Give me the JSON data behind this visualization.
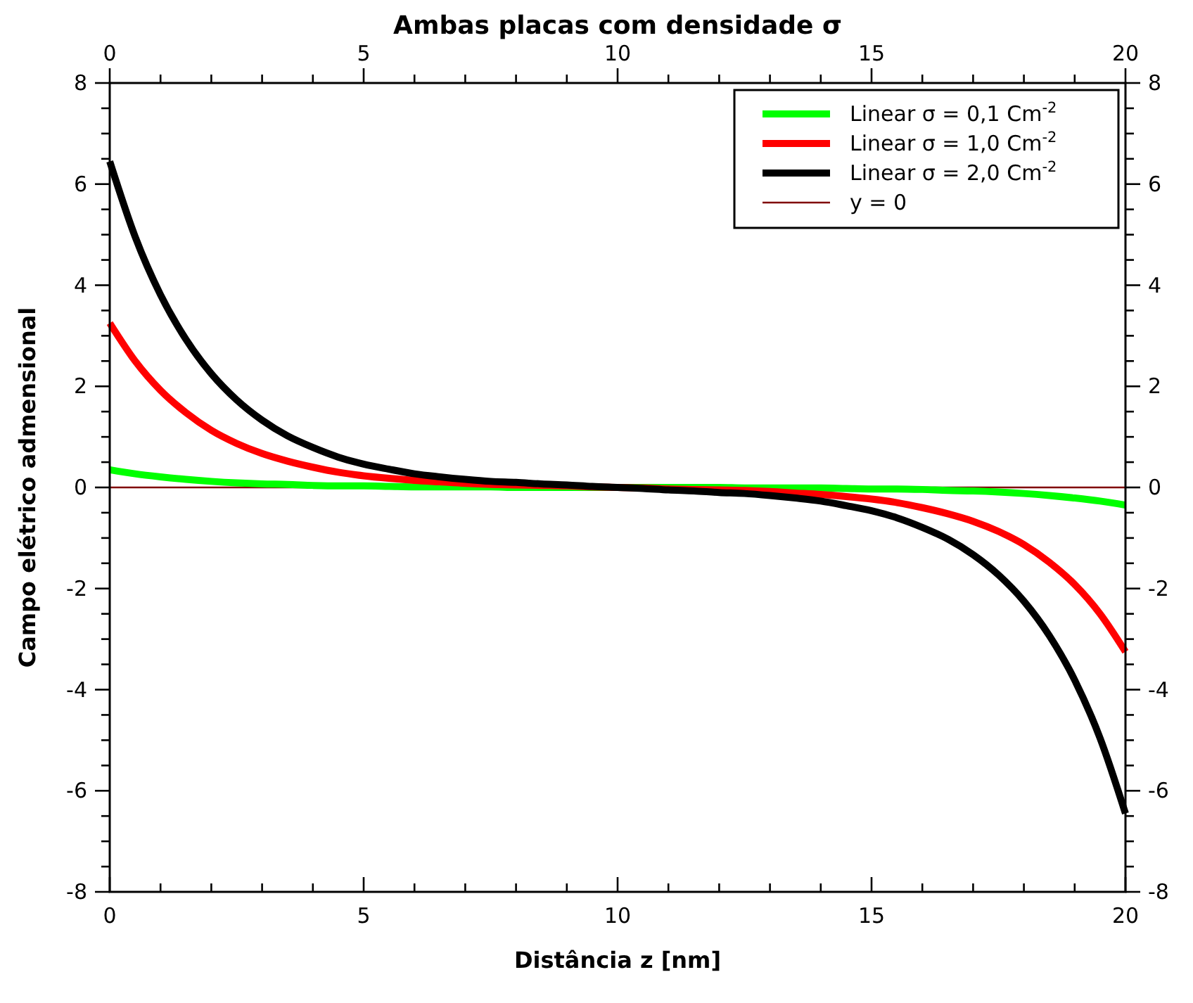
{
  "chart_data": {
    "type": "line",
    "title": "Ambas placas com densidade σ",
    "xlabel": "Distância z [nm]",
    "ylabel": "Campo elétrico admensional",
    "x": [
      0,
      0.5,
      1,
      1.5,
      2,
      2.5,
      3,
      3.5,
      4,
      4.5,
      5,
      5.5,
      6,
      6.5,
      7,
      7.5,
      8,
      8.5,
      9,
      9.5,
      10,
      10.5,
      11,
      11.5,
      12,
      12.5,
      13,
      13.5,
      14,
      14.5,
      15,
      15.5,
      16,
      16.5,
      17,
      17.5,
      18,
      18.5,
      19,
      19.5,
      20
    ],
    "series": [
      {
        "name": "Linear σ = 0,1 Cm$^{-2}$",
        "color": "#00ff00",
        "values": [
          0.35,
          0.27,
          0.21,
          0.16,
          0.12,
          0.09,
          0.07,
          0.06,
          0.04,
          0.03,
          0.03,
          0.02,
          0.01,
          0.01,
          0.01,
          0.01,
          0,
          0,
          0,
          0,
          0,
          0,
          0,
          0,
          0,
          -0.01,
          -0.01,
          -0.01,
          -0.01,
          -0.02,
          -0.03,
          -0.03,
          -0.04,
          -0.06,
          -0.07,
          -0.09,
          -0.12,
          -0.16,
          -0.21,
          -0.27,
          -0.35
        ]
      },
      {
        "name": "Linear σ = 1,0 Cm$^{-2}$",
        "color": "#ff0000",
        "values": [
          3.25,
          2.5,
          1.92,
          1.48,
          1.13,
          0.87,
          0.67,
          0.52,
          0.4,
          0.3,
          0.23,
          0.18,
          0.14,
          0.11,
          0.08,
          0.06,
          0.05,
          0.04,
          0.03,
          0.01,
          0,
          -0.01,
          -0.03,
          -0.04,
          -0.05,
          -0.06,
          -0.08,
          -0.11,
          -0.14,
          -0.18,
          -0.23,
          -0.3,
          -0.4,
          -0.52,
          -0.67,
          -0.87,
          -1.13,
          -1.48,
          -1.92,
          -2.5,
          -3.25
        ]
      },
      {
        "name": "Linear σ = 2,0 Cm$^{-2}$",
        "color": "#000000",
        "values": [
          6.45,
          4.96,
          3.81,
          2.93,
          2.25,
          1.73,
          1.33,
          1.02,
          0.79,
          0.6,
          0.46,
          0.36,
          0.27,
          0.21,
          0.16,
          0.12,
          0.1,
          0.07,
          0.05,
          0.02,
          0,
          -0.02,
          -0.05,
          -0.07,
          -0.1,
          -0.12,
          -0.16,
          -0.21,
          -0.27,
          -0.36,
          -0.46,
          -0.6,
          -0.79,
          -1.02,
          -1.33,
          -1.73,
          -2.25,
          -2.93,
          -3.81,
          -4.96,
          -6.45
        ]
      }
    ],
    "ref_lines": [
      {
        "axis": "y",
        "value": 0,
        "label": "y = 0",
        "color": "#800000"
      }
    ],
    "xlim": [
      0,
      20
    ],
    "ylim": [
      -8,
      8
    ],
    "x2lim": [
      0,
      20
    ],
    "y2lim": [
      -8,
      8
    ],
    "xticks": [
      0,
      {
        "value": 1,
        "label": null
      },
      {
        "value": 2,
        "label": null
      },
      {
        "value": 3,
        "label": null
      },
      {
        "value": 4,
        "label": null
      },
      5,
      {
        "value": 6,
        "label": null
      },
      {
        "value": 7,
        "label": null
      },
      {
        "value": 8,
        "label": null
      },
      {
        "value": 9,
        "label": null
      },
      10,
      {
        "value": 11,
        "label": null
      },
      {
        "value": 12,
        "label": null
      },
      {
        "value": 13,
        "label": null
      },
      {
        "value": 14,
        "label": null
      },
      15,
      {
        "value": 16,
        "label": null
      },
      {
        "value": 17,
        "label": null
      },
      {
        "value": 18,
        "label": null
      },
      {
        "value": 19,
        "label": null
      },
      20
    ],
    "x2ticks": [
      0,
      {
        "value": 1,
        "label": null
      },
      {
        "value": 2,
        "label": null
      },
      {
        "value": 3,
        "label": null
      },
      {
        "value": 4,
        "label": null
      },
      5,
      {
        "value": 6,
        "label": null
      },
      {
        "value": 7,
        "label": null
      },
      {
        "value": 8,
        "label": null
      },
      {
        "value": 9,
        "label": null
      },
      10,
      {
        "value": 11,
        "label": null
      },
      {
        "value": 12,
        "label": null
      },
      {
        "value": 13,
        "label": null
      },
      {
        "value": 14,
        "label": null
      },
      15,
      {
        "value": 16,
        "label": null
      },
      {
        "value": 17,
        "label": null
      },
      {
        "value": 18,
        "label": null
      },
      {
        "value": 19,
        "label": null
      },
      20
    ],
    "yticks": [
      -8,
      {
        "value": -7.5,
        "label": null
      },
      {
        "value": -7,
        "label": null
      },
      {
        "value": -6.5,
        "label": null
      },
      -6,
      {
        "value": -5.5,
        "label": null
      },
      {
        "value": -5,
        "label": null
      },
      {
        "value": -4.5,
        "label": null
      },
      -4,
      {
        "value": -3.5,
        "label": null
      },
      {
        "value": -3,
        "label": null
      },
      {
        "value": -2.5,
        "label": null
      },
      -2,
      {
        "value": -1.5,
        "label": null
      },
      {
        "value": -1,
        "label": null
      },
      {
        "value": -0.5,
        "label": null
      },
      0,
      {
        "value": 0.5,
        "label": null
      },
      {
        "value": 1,
        "label": null
      },
      {
        "value": 1.5,
        "label": null
      },
      2,
      {
        "value": 2.5,
        "label": null
      },
      {
        "value": 3,
        "label": null
      },
      {
        "value": 3.5,
        "label": null
      },
      4,
      {
        "value": 4.5,
        "label": null
      },
      {
        "value": 5,
        "label": null
      },
      {
        "value": 5.5,
        "label": null
      },
      6,
      {
        "value": 6.5,
        "label": null
      },
      {
        "value": 7,
        "label": null
      },
      {
        "value": 7.5,
        "label": null
      },
      8
    ],
    "y2ticks": [
      -8,
      {
        "value": -7.5,
        "label": null
      },
      {
        "value": -7,
        "label": null
      },
      {
        "value": -6.5,
        "label": null
      },
      -6,
      {
        "value": -5.5,
        "label": null
      },
      {
        "value": -5,
        "label": null
      },
      {
        "value": -4.5,
        "label": null
      },
      -4,
      {
        "value": -3.5,
        "label": null
      },
      {
        "value": -3,
        "label": null
      },
      {
        "value": -2.5,
        "label": null
      },
      -2,
      {
        "value": -1.5,
        "label": null
      },
      {
        "value": -1,
        "label": null
      },
      {
        "value": -0.5,
        "label": null
      },
      0,
      {
        "value": 0.5,
        "label": null
      },
      {
        "value": 1,
        "label": null
      },
      {
        "value": 1.5,
        "label": null
      },
      2,
      {
        "value": 2.5,
        "label": null
      },
      {
        "value": 3,
        "label": null
      },
      {
        "value": 3.5,
        "label": null
      },
      4,
      {
        "value": 4.5,
        "label": null
      },
      {
        "value": 5,
        "label": null
      },
      {
        "value": 5.5,
        "label": null
      },
      6,
      {
        "value": 6.5,
        "label": null
      },
      {
        "value": 7,
        "label": null
      },
      {
        "value": 7.5,
        "label": null
      },
      8
    ],
    "grid": false,
    "legend": "top right",
    "line_style": "solid"
  }
}
